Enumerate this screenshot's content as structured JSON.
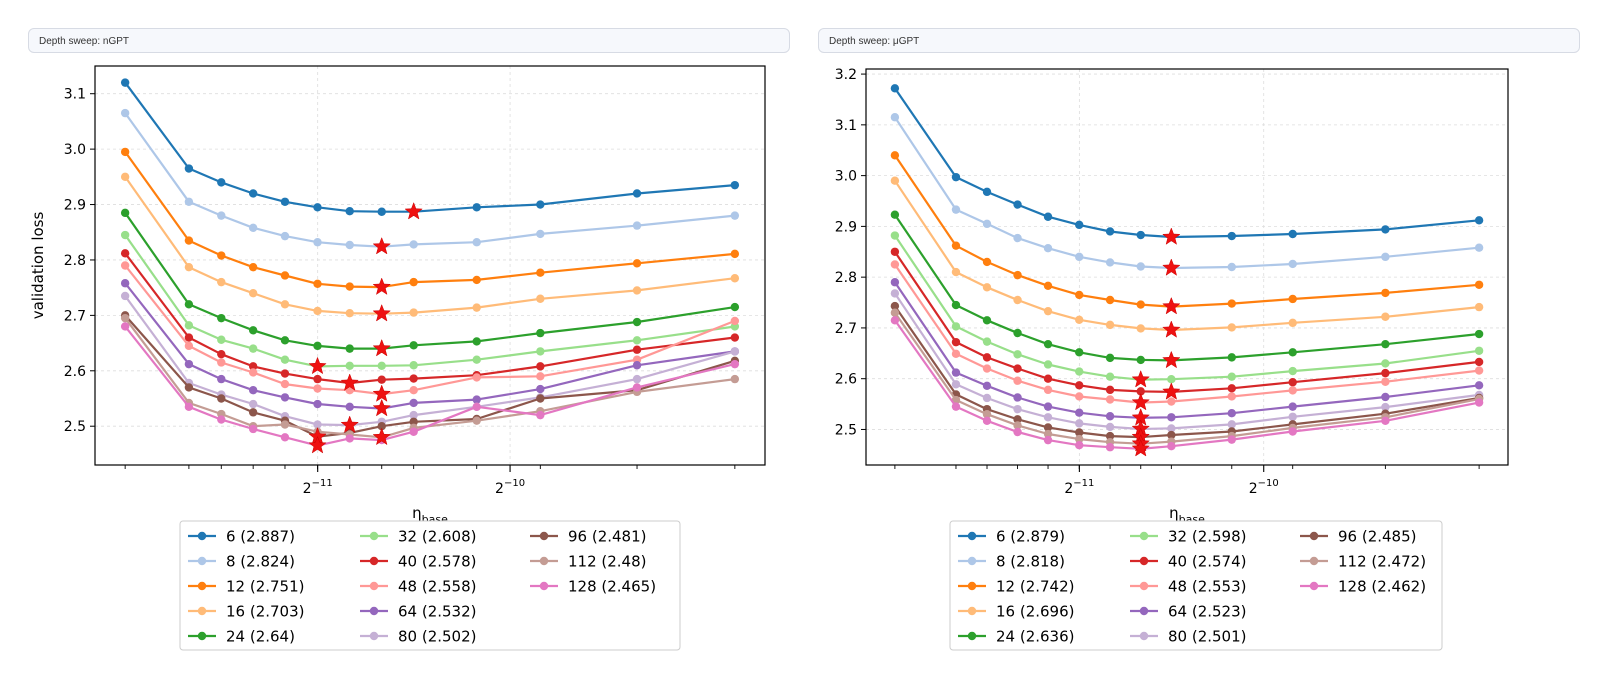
{
  "panels": [
    {
      "header": "Depth sweep: nGPT",
      "chart_data": {
        "type": "line",
        "xlabel": "η_base",
        "ylabel": "validation loss",
        "x_scale": "log2",
        "x_ticks": [
          {
            "value": 0.00048828125,
            "label": "2^{-11}"
          },
          {
            "value": 0.0009765625,
            "label": "2^{-10}"
          }
        ],
        "x": [
          0.000244,
          0.000307,
          0.000345,
          0.000387,
          0.000434,
          0.000488,
          0.000548,
          0.000615,
          0.00069,
          0.000866,
          0.001089,
          0.001543,
          0.002195
        ],
        "ylim": [
          2.43,
          3.15
        ],
        "y_ticks": [
          2.5,
          2.6,
          2.7,
          2.8,
          2.9,
          3.0,
          3.1
        ],
        "grid": true,
        "legend_position": "bottom",
        "legend_columns": 3,
        "series": [
          {
            "name": "6 (2.887)",
            "color": "#1f77b4",
            "best_index": 8,
            "values": [
              3.12,
              2.965,
              2.94,
              2.92,
              2.905,
              2.895,
              2.888,
              2.887,
              2.887,
              2.895,
              2.9,
              2.92,
              2.935
            ]
          },
          {
            "name": "8 (2.824)",
            "color": "#aec7e8",
            "best_index": 7,
            "values": [
              3.065,
              2.905,
              2.88,
              2.858,
              2.843,
              2.832,
              2.827,
              2.824,
              2.828,
              2.832,
              2.847,
              2.862,
              2.88
            ]
          },
          {
            "name": "12 (2.751)",
            "color": "#ff7f0e",
            "best_index": 7,
            "values": [
              2.995,
              2.835,
              2.808,
              2.787,
              2.772,
              2.757,
              2.752,
              2.751,
              2.76,
              2.764,
              2.777,
              2.794,
              2.811
            ]
          },
          {
            "name": "16 (2.703)",
            "color": "#ffbb78",
            "best_index": 7,
            "values": [
              2.95,
              2.787,
              2.76,
              2.74,
              2.72,
              2.708,
              2.704,
              2.703,
              2.705,
              2.714,
              2.73,
              2.745,
              2.767
            ]
          },
          {
            "name": "24 (2.64)",
            "color": "#2ca02c",
            "best_index": 7,
            "values": [
              2.885,
              2.72,
              2.695,
              2.673,
              2.655,
              2.645,
              2.64,
              2.64,
              2.646,
              2.653,
              2.668,
              2.688,
              2.715
            ]
          },
          {
            "name": "32 (2.608)",
            "color": "#98df8a",
            "best_index": 5,
            "values": [
              2.845,
              2.682,
              2.656,
              2.64,
              2.62,
              2.608,
              2.609,
              2.609,
              2.61,
              2.62,
              2.635,
              2.655,
              2.68
            ]
          },
          {
            "name": "40 (2.578)",
            "color": "#d62728",
            "best_index": 6,
            "values": [
              2.812,
              2.66,
              2.63,
              2.608,
              2.595,
              2.585,
              2.578,
              2.584,
              2.586,
              2.592,
              2.608,
              2.638,
              2.66
            ]
          },
          {
            "name": "48 (2.558)",
            "color": "#ff9896",
            "best_index": 7,
            "values": [
              2.79,
              2.645,
              2.615,
              2.597,
              2.576,
              2.568,
              2.565,
              2.558,
              2.565,
              2.588,
              2.59,
              2.62,
              2.69
            ]
          },
          {
            "name": "64 (2.532)",
            "color": "#9467bd",
            "best_index": 7,
            "values": [
              2.758,
              2.612,
              2.585,
              2.565,
              2.552,
              2.54,
              2.535,
              2.532,
              2.542,
              2.548,
              2.567,
              2.61,
              2.635
            ]
          },
          {
            "name": "80 (2.502)",
            "color": "#c5b0d5",
            "best_index": 6,
            "values": [
              2.735,
              2.578,
              2.557,
              2.54,
              2.518,
              2.503,
              2.502,
              2.508,
              2.52,
              2.535,
              2.552,
              2.585,
              2.635
            ]
          },
          {
            "name": "96 (2.481)",
            "color": "#8c564b",
            "best_index": 5,
            "values": [
              2.7,
              2.57,
              2.55,
              2.525,
              2.51,
              2.481,
              2.488,
              2.5,
              2.508,
              2.513,
              2.55,
              2.565,
              2.618
            ]
          },
          {
            "name": "112 (2.48)",
            "color": "#c49c94",
            "best_index": 7,
            "values": [
              2.695,
              2.542,
              2.522,
              2.5,
              2.503,
              2.49,
              2.485,
              2.48,
              2.497,
              2.51,
              2.527,
              2.562,
              2.585
            ]
          },
          {
            "name": "128 (2.465)",
            "color": "#e377c2",
            "best_index": 5,
            "values": [
              2.68,
              2.535,
              2.512,
              2.495,
              2.48,
              2.465,
              2.478,
              2.475,
              2.49,
              2.535,
              2.52,
              2.57,
              2.612
            ]
          }
        ]
      }
    },
    {
      "header": "Depth sweep: μGPT",
      "chart_data": {
        "type": "line",
        "xlabel": "η_base",
        "ylabel": "validation loss",
        "x_scale": "log2",
        "x_ticks": [
          {
            "value": 0.00048828125,
            "label": "2^{-11}"
          },
          {
            "value": 0.0009765625,
            "label": "2^{-10}"
          }
        ],
        "x": [
          0.000244,
          0.000307,
          0.000345,
          0.000387,
          0.000434,
          0.000488,
          0.000548,
          0.000615,
          0.00069,
          0.000866,
          0.001089,
          0.001543,
          0.002195
        ],
        "ylim": [
          2.43,
          3.21
        ],
        "y_ticks": [
          2.5,
          2.6,
          2.7,
          2.8,
          2.9,
          3.0,
          3.1,
          3.2
        ],
        "grid": true,
        "legend_position": "bottom",
        "legend_columns": 3,
        "series": [
          {
            "name": "6 (2.879)",
            "color": "#1f77b4",
            "best_index": 8,
            "values": [
              3.172,
              2.997,
              2.968,
              2.943,
              2.919,
              2.903,
              2.89,
              2.883,
              2.879,
              2.881,
              2.885,
              2.894,
              2.912
            ]
          },
          {
            "name": "8 (2.818)",
            "color": "#aec7e8",
            "best_index": 8,
            "values": [
              3.115,
              2.933,
              2.905,
              2.877,
              2.857,
              2.84,
              2.829,
              2.821,
              2.818,
              2.82,
              2.826,
              2.84,
              2.858
            ]
          },
          {
            "name": "12 (2.742)",
            "color": "#ff7f0e",
            "best_index": 8,
            "values": [
              3.04,
              2.862,
              2.83,
              2.804,
              2.783,
              2.765,
              2.755,
              2.746,
              2.742,
              2.748,
              2.757,
              2.769,
              2.785
            ]
          },
          {
            "name": "16 (2.696)",
            "color": "#ffbb78",
            "best_index": 8,
            "values": [
              2.99,
              2.81,
              2.78,
              2.755,
              2.733,
              2.716,
              2.706,
              2.699,
              2.696,
              2.701,
              2.71,
              2.722,
              2.741
            ]
          },
          {
            "name": "24 (2.636)",
            "color": "#2ca02c",
            "best_index": 8,
            "values": [
              2.923,
              2.745,
              2.715,
              2.69,
              2.668,
              2.652,
              2.641,
              2.637,
              2.636,
              2.642,
              2.652,
              2.668,
              2.688
            ]
          },
          {
            "name": "32 (2.598)",
            "color": "#98df8a",
            "best_index": 7,
            "values": [
              2.882,
              2.703,
              2.673,
              2.648,
              2.628,
              2.614,
              2.604,
              2.598,
              2.599,
              2.604,
              2.615,
              2.63,
              2.655
            ]
          },
          {
            "name": "40 (2.574)",
            "color": "#d62728",
            "best_index": 8,
            "values": [
              2.85,
              2.672,
              2.642,
              2.62,
              2.6,
              2.587,
              2.578,
              2.575,
              2.574,
              2.581,
              2.593,
              2.611,
              2.633
            ]
          },
          {
            "name": "48 (2.553)",
            "color": "#ff9896",
            "best_index": 7,
            "values": [
              2.825,
              2.649,
              2.62,
              2.596,
              2.578,
              2.565,
              2.559,
              2.553,
              2.555,
              2.565,
              2.577,
              2.594,
              2.616
            ]
          },
          {
            "name": "64 (2.523)",
            "color": "#9467bd",
            "best_index": 7,
            "values": [
              2.79,
              2.612,
              2.586,
              2.563,
              2.545,
              2.533,
              2.526,
              2.523,
              2.524,
              2.532,
              2.545,
              2.564,
              2.587
            ]
          },
          {
            "name": "80 (2.501)",
            "color": "#c5b0d5",
            "best_index": 7,
            "values": [
              2.768,
              2.589,
              2.562,
              2.54,
              2.524,
              2.512,
              2.505,
              2.501,
              2.502,
              2.51,
              2.525,
              2.544,
              2.568
            ]
          },
          {
            "name": "96 (2.485)",
            "color": "#8c564b",
            "best_index": 7,
            "values": [
              2.743,
              2.569,
              2.54,
              2.52,
              2.504,
              2.494,
              2.487,
              2.485,
              2.489,
              2.496,
              2.51,
              2.531,
              2.562
            ]
          },
          {
            "name": "112 (2.472)",
            "color": "#c49c94",
            "best_index": 7,
            "values": [
              2.73,
              2.558,
              2.53,
              2.508,
              2.491,
              2.481,
              2.475,
              2.472,
              2.476,
              2.487,
              2.503,
              2.524,
              2.56
            ]
          },
          {
            "name": "128 (2.462)",
            "color": "#e377c2",
            "best_index": 7,
            "values": [
              2.715,
              2.545,
              2.517,
              2.495,
              2.479,
              2.469,
              2.465,
              2.462,
              2.467,
              2.48,
              2.496,
              2.517,
              2.553
            ]
          }
        ]
      }
    }
  ]
}
